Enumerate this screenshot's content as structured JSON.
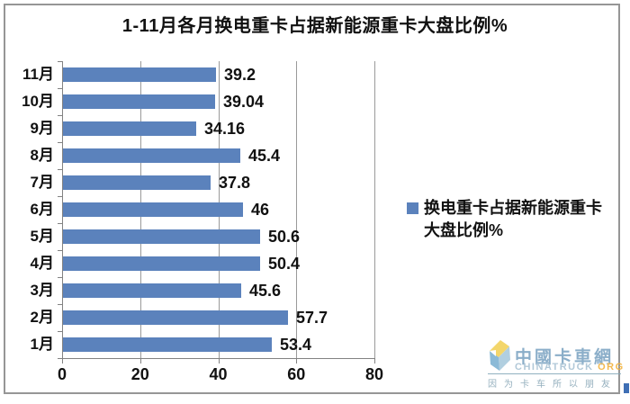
{
  "chart_data": {
    "type": "bar",
    "orientation": "horizontal",
    "title": "1-11月各月换电重卡占据新能源重卡大盘比例%",
    "categories": [
      "11月",
      "10月",
      "9月",
      "8月",
      "7月",
      "6月",
      "5月",
      "4月",
      "3月",
      "2月",
      "1月"
    ],
    "values": [
      39.2,
      39.04,
      34.16,
      45.4,
      37.8,
      46,
      50.6,
      50.4,
      45.6,
      57.7,
      53.4
    ],
    "value_labels": [
      "39.2",
      "39.04",
      "34.16",
      "45.4",
      "37.8",
      "46",
      "50.6",
      "50.4",
      "45.6",
      "57.7",
      "53.4"
    ],
    "x_ticks": [
      0,
      20,
      40,
      60,
      80
    ],
    "x_tick_labels": [
      "0",
      "20",
      "40",
      "60",
      "80"
    ],
    "xlim": [
      0,
      80
    ],
    "xlabel": "",
    "ylabel": "",
    "grid": "vertical-gridlines-on",
    "bar_color": "#5b82bc",
    "legend": {
      "position": "right",
      "lines": [
        "换电重卡占据新能源重卡",
        "大盘比例%"
      ]
    }
  },
  "watermark": {
    "brand_cn": "中國卡車網",
    "brand_en": "CHINATRUCK",
    "brand_tld": "ORG",
    "tagline": "因为卡车所以朋友",
    "colors": {
      "cn": "#7fa6c4",
      "en": "#a9c3d4",
      "tld": "#f3b33c",
      "tagline": "#8aa8b8"
    }
  }
}
